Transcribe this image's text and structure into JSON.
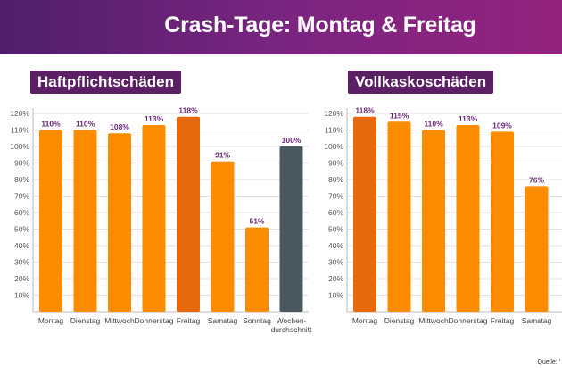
{
  "header": {
    "title": "Crash-Tage: Montag & Freitag"
  },
  "colors": {
    "bar_regular": "#fb8c00",
    "bar_highlight": "#e8690b",
    "bar_average": "#4a5960",
    "label": "#6b2a77",
    "grid": "#e2e2e2",
    "header_bg": "#7a2580",
    "panel_label_bg": "#5b1f63"
  },
  "source": {
    "label": "Quelle: '"
  },
  "chart_data": [
    {
      "type": "bar",
      "title": "Haftpflichtschäden",
      "categories": [
        "Montag",
        "Dienstag",
        "Mittwoch",
        "Donnerstag",
        "Freitag",
        "Samstag",
        "Sonntag",
        "Wochen-durchschnitt"
      ],
      "values": [
        110,
        110,
        108,
        113,
        118,
        91,
        51,
        100
      ],
      "data_labels": [
        "110%",
        "110%",
        "108%",
        "113%",
        "118%",
        "91%",
        "51%",
        "100%"
      ],
      "bar_colors": [
        "regular",
        "regular",
        "regular",
        "regular",
        "highlight",
        "regular",
        "regular",
        "average"
      ],
      "y_ticks": [
        "10%",
        "20%",
        "30%",
        "40%",
        "50%",
        "60%",
        "70%",
        "80%",
        "90%",
        "100%",
        "110%",
        "120%"
      ],
      "ylim": [
        0,
        120
      ],
      "grid": true,
      "xlabel": "",
      "ylabel": ""
    },
    {
      "type": "bar",
      "title": "Vollkaskoschäden",
      "categories": [
        "Montag",
        "Dienstag",
        "Mittwoch",
        "Donnerstag",
        "Freitag",
        "Samstag"
      ],
      "values": [
        118,
        115,
        110,
        113,
        109,
        76
      ],
      "data_labels": [
        "118%",
        "115%",
        "110%",
        "113%",
        "109%",
        "76%"
      ],
      "bar_colors": [
        "highlight",
        "regular",
        "regular",
        "regular",
        "regular",
        "regular"
      ],
      "y_ticks": [
        "10%",
        "20%",
        "30%",
        "40%",
        "50%",
        "60%",
        "70%",
        "80%",
        "90%",
        "100%",
        "110%",
        "120%"
      ],
      "ylim": [
        0,
        120
      ],
      "grid": true,
      "xlabel": "",
      "ylabel": ""
    }
  ]
}
